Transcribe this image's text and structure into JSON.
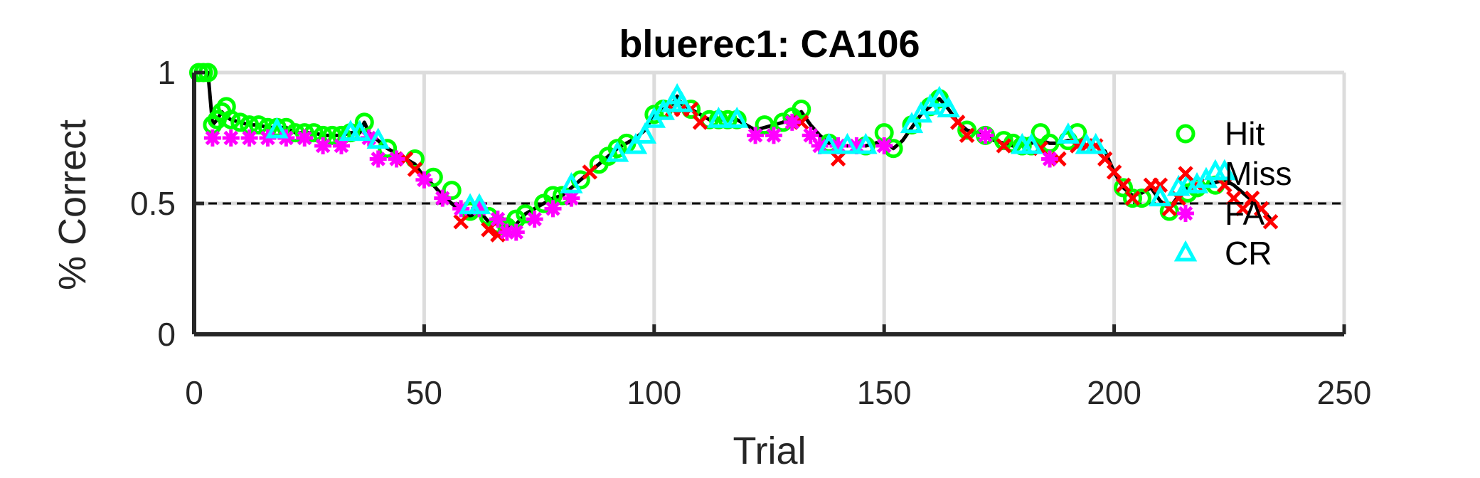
{
  "chart_data": {
    "type": "line",
    "title": "bluerec1: CA106",
    "xlabel": "Trial",
    "ylabel": "% Correct",
    "xlim": [
      0,
      250
    ],
    "ylim": [
      0,
      1
    ],
    "x_ticks": [
      "0",
      "50",
      "100",
      "150",
      "200",
      "250"
    ],
    "y_ticks": [
      "0",
      "0.5",
      "1"
    ],
    "grid": true,
    "reference_line": {
      "y": 0.5,
      "style": "dashed"
    },
    "legend_position": "right-inside",
    "performance_curve": {
      "x": [
        1,
        2,
        3,
        4,
        5,
        6,
        7,
        8,
        10,
        12,
        14,
        16,
        18,
        20,
        22,
        24,
        26,
        28,
        30,
        32,
        34,
        36,
        37,
        38,
        40,
        42,
        44,
        46,
        48,
        50,
        52,
        54,
        56,
        58,
        60,
        62,
        64,
        66,
        68,
        70,
        72,
        74,
        76,
        78,
        80,
        82,
        84,
        86,
        88,
        90,
        92,
        94,
        96,
        98,
        100,
        102,
        104,
        105,
        106,
        108,
        110,
        112,
        114,
        116,
        118,
        120,
        122,
        124,
        126,
        128,
        130,
        132,
        134,
        136,
        138,
        140,
        142,
        144,
        146,
        148,
        150,
        152,
        154,
        156,
        158,
        160,
        162,
        164,
        166,
        168,
        170,
        172,
        174,
        176,
        178,
        180,
        182,
        184,
        186,
        188,
        190,
        192,
        194,
        196,
        198,
        200,
        202,
        204,
        206,
        208,
        210,
        212,
        214,
        216,
        218,
        220,
        222,
        224,
        226,
        228,
        230,
        232,
        234
      ],
      "y": [
        1.0,
        1.0,
        1.0,
        0.8,
        0.82,
        0.85,
        0.83,
        0.82,
        0.81,
        0.8,
        0.8,
        0.79,
        0.79,
        0.79,
        0.77,
        0.77,
        0.77,
        0.76,
        0.76,
        0.76,
        0.77,
        0.77,
        0.81,
        0.77,
        0.74,
        0.71,
        0.69,
        0.67,
        0.65,
        0.6,
        0.57,
        0.53,
        0.5,
        0.47,
        0.45,
        0.47,
        0.43,
        0.42,
        0.41,
        0.42,
        0.46,
        0.48,
        0.5,
        0.52,
        0.53,
        0.56,
        0.59,
        0.62,
        0.65,
        0.68,
        0.71,
        0.73,
        0.75,
        0.78,
        0.84,
        0.86,
        0.88,
        0.91,
        0.88,
        0.86,
        0.84,
        0.82,
        0.82,
        0.82,
        0.82,
        0.8,
        0.78,
        0.79,
        0.8,
        0.81,
        0.83,
        0.85,
        0.8,
        0.76,
        0.73,
        0.72,
        0.72,
        0.72,
        0.72,
        0.73,
        0.74,
        0.71,
        0.74,
        0.79,
        0.84,
        0.87,
        0.9,
        0.86,
        0.81,
        0.78,
        0.77,
        0.76,
        0.74,
        0.73,
        0.72,
        0.72,
        0.73,
        0.74,
        0.73,
        0.73,
        0.74,
        0.73,
        0.72,
        0.72,
        0.7,
        0.62,
        0.56,
        0.53,
        0.54,
        0.56,
        0.51,
        0.48,
        0.53,
        0.56,
        0.57,
        0.57,
        0.58,
        0.59,
        0.57,
        0.54,
        0.51,
        0.48,
        0.44
      ]
    },
    "series": [
      {
        "name": "Hit",
        "marker": "circle",
        "color": "#00ff00",
        "x": [
          1,
          2,
          3,
          4,
          5,
          6,
          7,
          8,
          10,
          12,
          14,
          16,
          18,
          20,
          22,
          24,
          26,
          28,
          30,
          32,
          34,
          37,
          42,
          48,
          52,
          56,
          60,
          64,
          66,
          68,
          70,
          72,
          76,
          78,
          80,
          84,
          88,
          90,
          92,
          94,
          100,
          102,
          108,
          112,
          114,
          116,
          118,
          124,
          128,
          130,
          132,
          138,
          146,
          150,
          152,
          156,
          160,
          162,
          168,
          172,
          176,
          178,
          180,
          182,
          184,
          186,
          190,
          192,
          202,
          204,
          206,
          212,
          216,
          218,
          222
        ],
        "y": [
          1.0,
          1.0,
          1.0,
          0.8,
          0.82,
          0.85,
          0.87,
          0.82,
          0.81,
          0.8,
          0.8,
          0.79,
          0.79,
          0.79,
          0.77,
          0.77,
          0.77,
          0.76,
          0.76,
          0.76,
          0.77,
          0.81,
          0.71,
          0.67,
          0.6,
          0.55,
          0.47,
          0.45,
          0.42,
          0.41,
          0.44,
          0.46,
          0.5,
          0.53,
          0.53,
          0.59,
          0.65,
          0.68,
          0.71,
          0.73,
          0.84,
          0.86,
          0.86,
          0.82,
          0.82,
          0.82,
          0.82,
          0.8,
          0.81,
          0.83,
          0.86,
          0.73,
          0.72,
          0.77,
          0.71,
          0.8,
          0.87,
          0.9,
          0.78,
          0.76,
          0.74,
          0.73,
          0.72,
          0.72,
          0.77,
          0.73,
          0.74,
          0.77,
          0.56,
          0.52,
          0.52,
          0.47,
          0.54,
          0.56,
          0.57
        ]
      },
      {
        "name": "Miss",
        "marker": "x",
        "color": "#ff0000",
        "x": [
          46,
          48,
          58,
          64,
          66,
          86,
          104,
          106,
          108,
          110,
          132,
          140,
          166,
          168,
          176,
          184,
          188,
          192,
          194,
          196,
          198,
          200,
          202,
          204,
          208,
          210,
          212,
          214,
          218,
          224,
          226,
          228,
          230,
          232,
          234
        ],
        "y": [
          0.67,
          0.63,
          0.43,
          0.4,
          0.38,
          0.62,
          0.86,
          0.86,
          0.86,
          0.81,
          0.81,
          0.67,
          0.81,
          0.76,
          0.72,
          0.71,
          0.67,
          0.72,
          0.72,
          0.72,
          0.67,
          0.62,
          0.57,
          0.52,
          0.57,
          0.57,
          0.48,
          0.52,
          0.57,
          0.57,
          0.52,
          0.48,
          0.52,
          0.48,
          0.43
        ]
      },
      {
        "name": "FA",
        "marker": "asterisk",
        "color": "#ff00ff",
        "x": [
          4,
          8,
          12,
          16,
          20,
          24,
          28,
          32,
          38,
          40,
          44,
          50,
          54,
          58,
          62,
          66,
          68,
          70,
          74,
          78,
          82,
          122,
          126,
          130,
          134,
          136,
          140,
          144,
          150,
          172,
          186
        ],
        "y": [
          0.75,
          0.75,
          0.75,
          0.75,
          0.75,
          0.75,
          0.72,
          0.72,
          0.75,
          0.67,
          0.67,
          0.59,
          0.52,
          0.48,
          0.48,
          0.44,
          0.39,
          0.39,
          0.44,
          0.48,
          0.52,
          0.76,
          0.76,
          0.81,
          0.76,
          0.72,
          0.72,
          0.72,
          0.72,
          0.76,
          0.67
        ]
      },
      {
        "name": "CR",
        "marker": "triangle",
        "color": "#00ffff",
        "x": [
          18,
          34,
          36,
          40,
          60,
          62,
          82,
          92,
          96,
          98,
          100,
          102,
          104,
          105,
          106,
          114,
          118,
          138,
          142,
          146,
          156,
          158,
          160,
          162,
          164,
          180,
          182,
          190,
          194,
          196,
          210,
          214,
          216,
          218,
          220,
          222,
          224
        ],
        "y": [
          0.78,
          0.77,
          0.77,
          0.74,
          0.49,
          0.49,
          0.57,
          0.69,
          0.72,
          0.76,
          0.82,
          0.85,
          0.88,
          0.91,
          0.88,
          0.82,
          0.82,
          0.72,
          0.72,
          0.72,
          0.8,
          0.84,
          0.87,
          0.9,
          0.86,
          0.72,
          0.72,
          0.76,
          0.72,
          0.72,
          0.52,
          0.56,
          0.57,
          0.57,
          0.59,
          0.62,
          0.62
        ]
      }
    ]
  }
}
